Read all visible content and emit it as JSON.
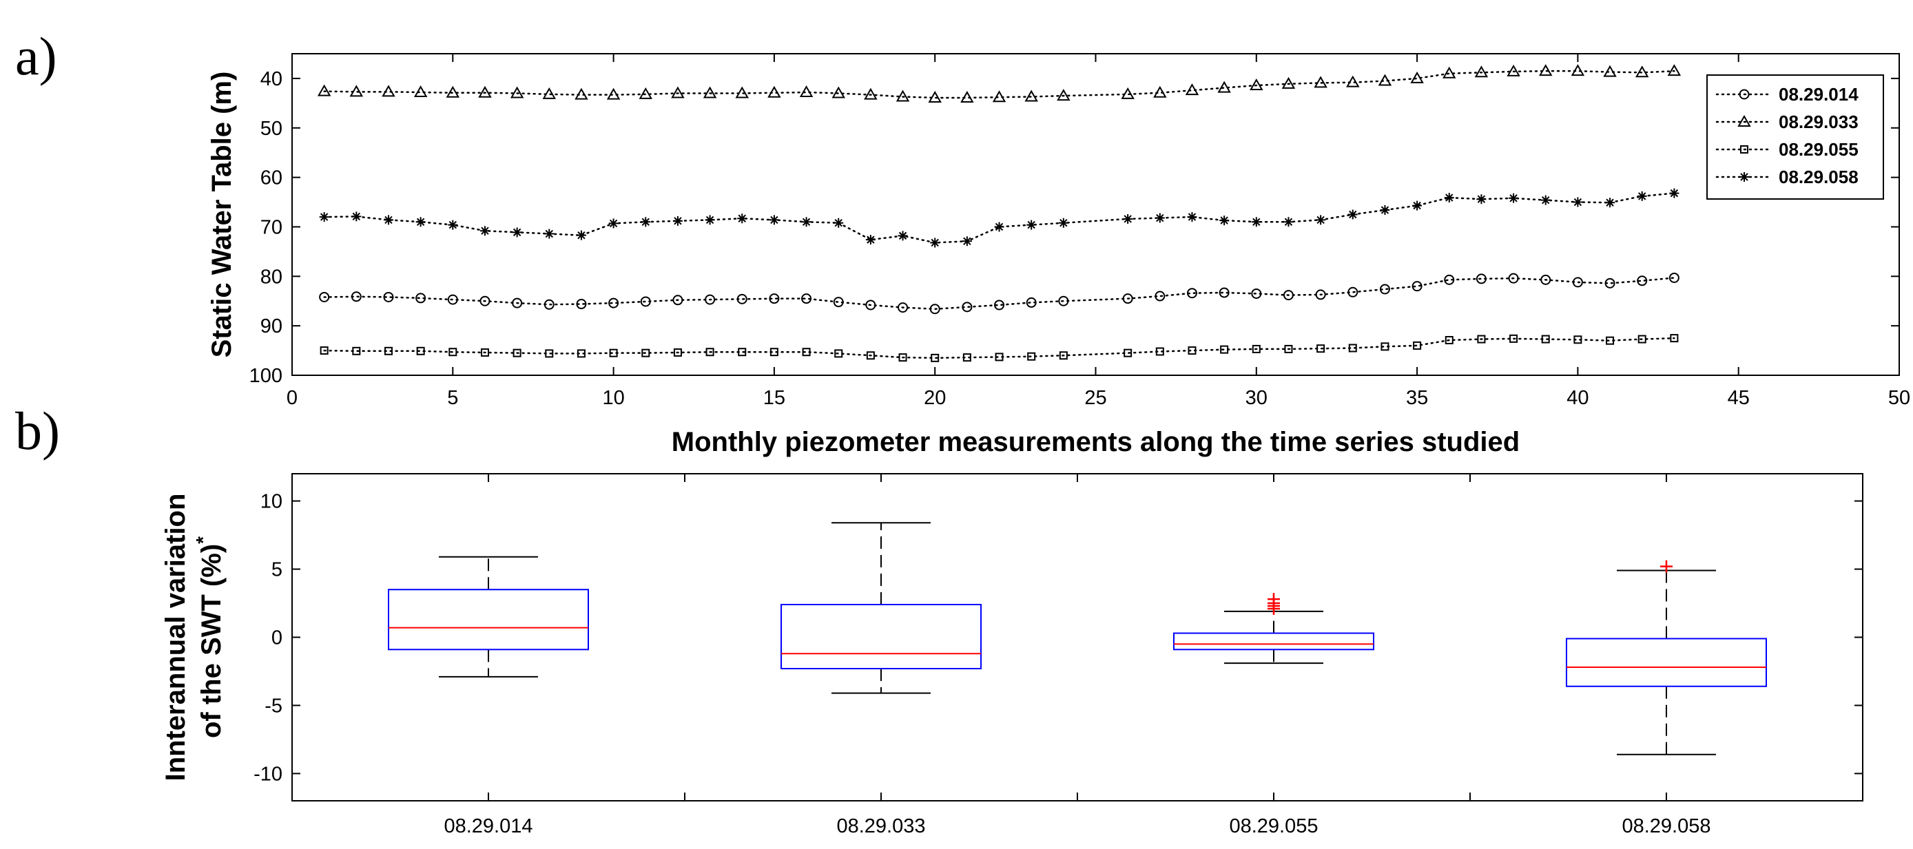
{
  "panel_labels": {
    "a": "a)",
    "b": "b)"
  },
  "chart_data": [
    {
      "type": "line",
      "panel": "a",
      "title": "",
      "xlabel": "Monthly piezometer measurements along the time series studied",
      "ylabel": "Static Water Table (m)",
      "xlim": [
        0,
        50
      ],
      "ylim": [
        100,
        35
      ],
      "y_reversed": true,
      "x_ticks": [
        0,
        5,
        10,
        15,
        20,
        25,
        30,
        35,
        40,
        45,
        50
      ],
      "y_ticks": [
        40,
        50,
        60,
        70,
        80,
        90,
        100
      ],
      "grid": false,
      "legend_position": "top-right",
      "x": [
        1,
        2,
        3,
        4,
        5,
        6,
        7,
        8,
        9,
        10,
        11,
        12,
        13,
        14,
        15,
        16,
        17,
        18,
        19,
        20,
        21,
        22,
        23,
        24,
        26,
        27,
        28,
        29,
        30,
        31,
        32,
        33,
        34,
        35,
        36,
        37,
        38,
        39,
        40,
        41,
        42,
        43
      ],
      "series": [
        {
          "name": "08.29.014",
          "marker": "circle",
          "values": [
            84.2,
            84.1,
            84.2,
            84.4,
            84.7,
            85.0,
            85.4,
            85.7,
            85.6,
            85.4,
            85.1,
            84.8,
            84.7,
            84.6,
            84.5,
            84.5,
            85.2,
            85.8,
            86.3,
            86.6,
            86.2,
            85.8,
            85.3,
            85.0,
            84.5,
            84.0,
            83.4,
            83.3,
            83.5,
            83.8,
            83.7,
            83.2,
            82.6,
            82.0,
            80.7,
            80.5,
            80.4,
            80.7,
            81.2,
            81.4,
            80.9,
            80.3
          ]
        },
        {
          "name": "08.29.033",
          "marker": "triangle",
          "values": [
            42.6,
            42.7,
            42.7,
            42.8,
            42.9,
            42.9,
            43.0,
            43.2,
            43.3,
            43.3,
            43.2,
            43.0,
            43.0,
            43.0,
            42.9,
            42.8,
            43.0,
            43.3,
            43.7,
            43.9,
            43.9,
            43.8,
            43.7,
            43.5,
            43.2,
            42.9,
            42.4,
            41.9,
            41.4,
            41.1,
            40.9,
            40.8,
            40.5,
            40.0,
            39.0,
            38.8,
            38.6,
            38.5,
            38.5,
            38.7,
            38.8,
            38.5
          ]
        },
        {
          "name": "08.29.055",
          "marker": "square",
          "values": [
            95.0,
            95.1,
            95.1,
            95.1,
            95.3,
            95.4,
            95.5,
            95.6,
            95.6,
            95.5,
            95.5,
            95.4,
            95.3,
            95.3,
            95.3,
            95.3,
            95.6,
            96.0,
            96.4,
            96.5,
            96.4,
            96.3,
            96.2,
            96.0,
            95.5,
            95.2,
            95.0,
            94.8,
            94.7,
            94.7,
            94.6,
            94.5,
            94.2,
            94.0,
            92.9,
            92.7,
            92.6,
            92.7,
            92.8,
            93.0,
            92.7,
            92.5
          ]
        },
        {
          "name": "08.29.058",
          "marker": "asterisk",
          "values": [
            68.0,
            67.9,
            68.6,
            69.0,
            69.6,
            70.8,
            71.1,
            71.4,
            71.7,
            69.3,
            69.0,
            68.8,
            68.6,
            68.3,
            68.6,
            69.0,
            69.2,
            72.6,
            71.8,
            73.2,
            72.9,
            70.0,
            69.6,
            69.2,
            68.4,
            68.2,
            68.0,
            68.7,
            69.0,
            69.0,
            68.6,
            67.5,
            66.6,
            65.7,
            64.1,
            64.4,
            64.2,
            64.6,
            65.0,
            65.1,
            63.8,
            63.2
          ]
        }
      ]
    },
    {
      "type": "boxplot",
      "panel": "b",
      "title": "",
      "xlabel": "",
      "ylabel_line1": "Innterannual variation",
      "ylabel_line2": "of the SWT (%)",
      "ylabel_superscript": "*",
      "ylim": [
        -12,
        12
      ],
      "y_ticks": [
        -10,
        -5,
        0,
        5,
        10
      ],
      "grid": false,
      "categories": [
        "08.29.014",
        "08.29.033",
        "08.29.055",
        "08.29.058"
      ],
      "boxes": [
        {
          "whisker_low": -2.9,
          "q1": -0.9,
          "median": 0.7,
          "q3": 3.5,
          "whisker_high": 5.9,
          "outliers": []
        },
        {
          "whisker_low": -4.1,
          "q1": -2.3,
          "median": -1.2,
          "q3": 2.4,
          "whisker_high": 8.4,
          "outliers": []
        },
        {
          "whisker_low": -1.9,
          "q1": -0.9,
          "median": -0.5,
          "q3": 0.3,
          "whisker_high": 1.9,
          "outliers": [
            2.1,
            2.3,
            2.5,
            2.8
          ]
        },
        {
          "whisker_low": -8.6,
          "q1": -3.6,
          "median": -2.2,
          "q3": -0.1,
          "whisker_high": 4.9,
          "outliers": [
            5.2
          ]
        }
      ],
      "colors": {
        "box": "#0000ff",
        "median": "#ff0000",
        "whisker": "#000000",
        "outlier": "#ff0000"
      }
    }
  ]
}
